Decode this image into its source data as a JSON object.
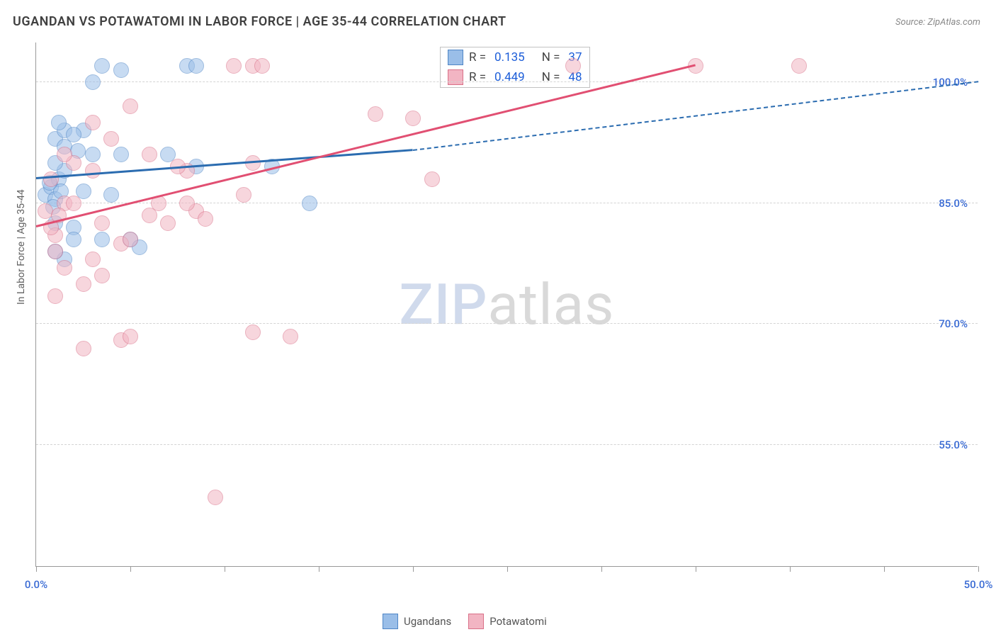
{
  "chart": {
    "title": "UGANDAN VS POTAWATOMI IN LABOR FORCE | AGE 35-44 CORRELATION CHART",
    "source": "Source: ZipAtlas.com",
    "y_axis_title": "In Labor Force | Age 35-44",
    "type": "scatter",
    "xlim": [
      0,
      50
    ],
    "ylim": [
      40,
      105
    ],
    "x_ticks": [
      0,
      5,
      10,
      15,
      20,
      25,
      30,
      35,
      40,
      45,
      50
    ],
    "x_tick_labels": {
      "0": "0.0%",
      "50": "50.0%"
    },
    "y_ticks": [
      55,
      70,
      85,
      100
    ],
    "y_tick_labels": {
      "55": "55.0%",
      "70": "70.0%",
      "85": "85.0%",
      "100": "100.0%"
    },
    "grid_color": "#d4d4d4",
    "background_color": "#ffffff",
    "marker_radius": 11,
    "marker_opacity": 0.55,
    "marker_border_width": 1.5,
    "series": [
      {
        "name": "Ugandans",
        "fill": "#9abee8",
        "stroke": "#4f86c6",
        "line_color": "#2b6cb0",
        "r": "0.135",
        "n": "37",
        "trend": {
          "x1": 0,
          "y1": 88,
          "x2": 20,
          "y2": 91.5,
          "x_solid_end": 20,
          "x_dash_end": 50,
          "y_dash_end": 100
        },
        "points": [
          [
            0.5,
            86
          ],
          [
            0.8,
            87
          ],
          [
            1.0,
            85.5
          ],
          [
            1.2,
            88
          ],
          [
            1.3,
            86.5
          ],
          [
            0.7,
            87.5
          ],
          [
            0.9,
            84.5
          ],
          [
            1.5,
            89
          ],
          [
            1.0,
            93
          ],
          [
            1.5,
            94
          ],
          [
            2.5,
            94
          ],
          [
            2.0,
            93.5
          ],
          [
            1.5,
            92
          ],
          [
            2.2,
            91.5
          ],
          [
            1.2,
            95
          ],
          [
            3.5,
            102
          ],
          [
            4.5,
            101.5
          ],
          [
            3.0,
            100
          ],
          [
            8.0,
            102
          ],
          [
            8.5,
            102
          ],
          [
            1.0,
            90
          ],
          [
            1.0,
            82.5
          ],
          [
            2.0,
            82
          ],
          [
            2.5,
            86.5
          ],
          [
            3.0,
            91
          ],
          [
            5.0,
            80.5
          ],
          [
            5.5,
            79.5
          ],
          [
            3.5,
            80.5
          ],
          [
            2.0,
            80.5
          ],
          [
            1.5,
            78
          ],
          [
            1.0,
            79
          ],
          [
            4.0,
            86
          ],
          [
            4.5,
            91
          ],
          [
            8.5,
            89.5
          ],
          [
            14.5,
            85
          ],
          [
            12.5,
            89.5
          ],
          [
            7.0,
            91
          ]
        ]
      },
      {
        "name": "Potawatomi",
        "fill": "#f2b5c3",
        "stroke": "#d97088",
        "line_color": "#e14f72",
        "r": "0.449",
        "n": "48",
        "trend": {
          "x1": 0,
          "y1": 82,
          "x2": 35,
          "y2": 102,
          "x_solid_end": 35,
          "x_dash_end": 35,
          "y_dash_end": 102
        },
        "points": [
          [
            0.5,
            84
          ],
          [
            1.0,
            81
          ],
          [
            1.5,
            85
          ],
          [
            0.8,
            82
          ],
          [
            1.2,
            83.5
          ],
          [
            1.0,
            79
          ],
          [
            1.5,
            77
          ],
          [
            2.0,
            85
          ],
          [
            2.5,
            75
          ],
          [
            3.0,
            78
          ],
          [
            3.5,
            76
          ],
          [
            1.0,
            73.5
          ],
          [
            4.5,
            80
          ],
          [
            5.0,
            80.5
          ],
          [
            6.0,
            83.5
          ],
          [
            5.0,
            97
          ],
          [
            3.0,
            95
          ],
          [
            3.5,
            82.5
          ],
          [
            6.5,
            85
          ],
          [
            7.0,
            82.5
          ],
          [
            8.0,
            89
          ],
          [
            10.5,
            102
          ],
          [
            11.5,
            102
          ],
          [
            12.0,
            102
          ],
          [
            28.5,
            102
          ],
          [
            35.0,
            102
          ],
          [
            40.5,
            102
          ],
          [
            18.0,
            96
          ],
          [
            20.0,
            95.5
          ],
          [
            11.0,
            86
          ],
          [
            8.5,
            84
          ],
          [
            2.5,
            67
          ],
          [
            4.5,
            68
          ],
          [
            5.0,
            68.5
          ],
          [
            11.5,
            69
          ],
          [
            13.5,
            68.5
          ],
          [
            9.5,
            48.5
          ],
          [
            21.0,
            88
          ],
          [
            11.5,
            90
          ],
          [
            7.5,
            89.5
          ],
          [
            6.0,
            91
          ],
          [
            4.0,
            93
          ],
          [
            8.0,
            85
          ],
          [
            9.0,
            83
          ],
          [
            3.0,
            89
          ],
          [
            2.0,
            90
          ],
          [
            1.5,
            91
          ],
          [
            0.8,
            88
          ]
        ]
      }
    ],
    "watermark": {
      "part1": "ZIP",
      "part2": "atlas"
    },
    "bottom_legend": [
      {
        "label": "Ugandans",
        "fill": "#9abee8",
        "stroke": "#4f86c6"
      },
      {
        "label": "Potawatomi",
        "fill": "#f2b5c3",
        "stroke": "#d97088"
      }
    ]
  }
}
